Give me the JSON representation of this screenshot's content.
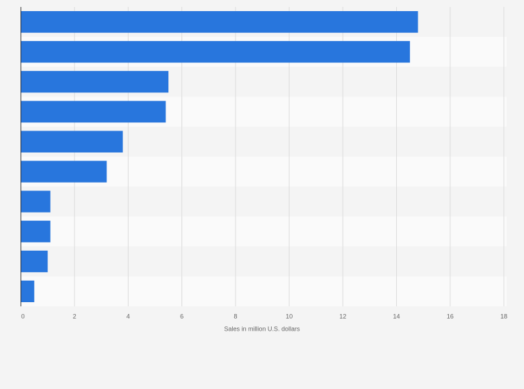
{
  "chart_data": {
    "type": "bar",
    "orientation": "horizontal",
    "xlabel": "Sales in million U.S. dollars",
    "categories": [
      null,
      null,
      null,
      null,
      null,
      null,
      null,
      null,
      null,
      null
    ],
    "values": [
      14.8,
      14.5,
      5.5,
      5.4,
      3.8,
      3.2,
      1.1,
      1.1,
      1.0,
      0.5
    ],
    "color": "#2876dd",
    "xlim": [
      0,
      18
    ],
    "xticks": [
      0,
      2,
      4,
      6,
      8,
      10,
      12,
      14,
      16,
      18
    ],
    "grid": true
  }
}
